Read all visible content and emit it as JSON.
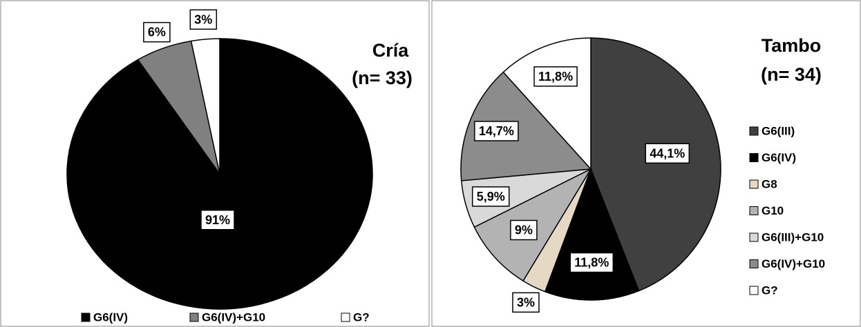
{
  "chart_data": [
    {
      "type": "pie",
      "title": "Cría",
      "subtitle": "(n= 33)",
      "categories": [
        "G6(IV)",
        "G6(IV)+G10",
        "G?"
      ],
      "values": [
        91,
        6,
        3
      ],
      "value_labels": [
        "91%",
        "6%",
        "3%"
      ],
      "colors": [
        "#000000",
        "#808080",
        "#ffffff"
      ],
      "legend": "bottom"
    },
    {
      "type": "pie",
      "title": "Tambo",
      "subtitle": "(n= 34)",
      "categories": [
        "G6(III)",
        "G6(IV)",
        "G8",
        "G10",
        "G6(III)+G10",
        "G6(IV)+G10",
        "G?"
      ],
      "values": [
        44.1,
        11.8,
        3,
        9,
        5.9,
        14.7,
        11.8
      ],
      "value_labels": [
        "44,1%",
        "11,8%",
        "3%",
        "9%",
        "5,9%",
        "14,7%",
        "11,8%"
      ],
      "colors": [
        "#404040",
        "#000000",
        "#e6d9c3",
        "#b3b3b3",
        "#d9d9d9",
        "#8c8c8c",
        "#ffffff"
      ],
      "legend": "right"
    }
  ]
}
